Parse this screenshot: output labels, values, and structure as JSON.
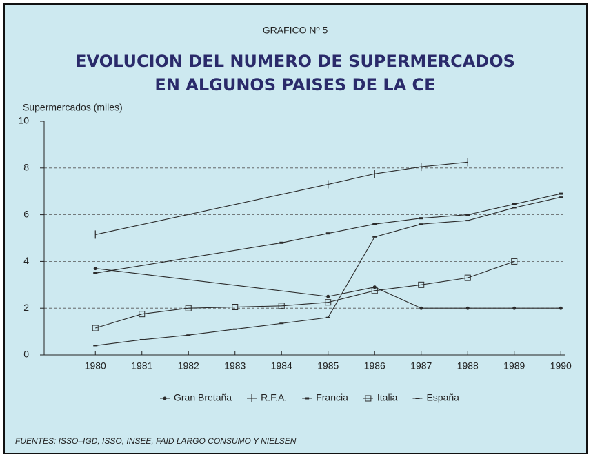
{
  "chart_data": {
    "type": "line",
    "header": "GRAFICO Nº 5",
    "title": [
      "EVOLUCION DEL NUMERO DE SUPERMERCADOS",
      "EN ALGUNOS PAISES DE LA CE"
    ],
    "y_label": "Supermercados (miles)",
    "footnote": "FUENTES: ISSO–IGD, ISSO, INSEE, FAID LARGO CONSUMO Y NIELSEN",
    "xlim": [
      1978.9,
      1990.1
    ],
    "xticks": [
      1980,
      1981,
      1982,
      1983,
      1984,
      1985,
      1986,
      1987,
      1988,
      1989,
      1990
    ],
    "ylim": [
      0,
      10
    ],
    "yticks": [
      0,
      2,
      4,
      6,
      8,
      10
    ],
    "grid": true,
    "series": [
      {
        "name": "Gran Bretaña",
        "color": "#2b2b2b",
        "marker": "dot",
        "x": [
          1980,
          1985,
          1986,
          1987,
          1988,
          1989,
          1990
        ],
        "values": [
          3.7,
          2.5,
          2.9,
          2.0,
          2.0,
          2.0,
          2.0
        ]
      },
      {
        "name": "R.F.A.",
        "color": "#2b2b2b",
        "marker": "vtick",
        "x": [
          1980,
          1985,
          1986,
          1987,
          1988
        ],
        "values": [
          5.15,
          7.3,
          7.75,
          8.05,
          8.25
        ]
      },
      {
        "name": "Francia",
        "color": "#2b2b2b",
        "marker": "htick",
        "x": [
          1980,
          1984,
          1985,
          1986,
          1987,
          1988,
          1989,
          1990
        ],
        "values": [
          3.5,
          4.8,
          5.2,
          5.6,
          5.85,
          6.0,
          6.45,
          6.9
        ]
      },
      {
        "name": "Italia",
        "color": "#2b2b2b",
        "marker": "square",
        "x": [
          1980,
          1981,
          1982,
          1983,
          1984,
          1985,
          1986,
          1987,
          1988,
          1989
        ],
        "values": [
          1.15,
          1.75,
          2.0,
          2.05,
          2.1,
          2.25,
          2.75,
          3.0,
          3.3,
          4.0
        ]
      },
      {
        "name": "España",
        "color": "#2b2b2b",
        "marker": "dash",
        "x": [
          1980,
          1981,
          1982,
          1983,
          1984,
          1985,
          1986,
          1987,
          1988,
          1989,
          1990
        ],
        "values": [
          0.4,
          0.65,
          0.85,
          1.1,
          1.35,
          1.6,
          5.05,
          5.6,
          5.75,
          6.3,
          6.75
        ]
      }
    ]
  }
}
